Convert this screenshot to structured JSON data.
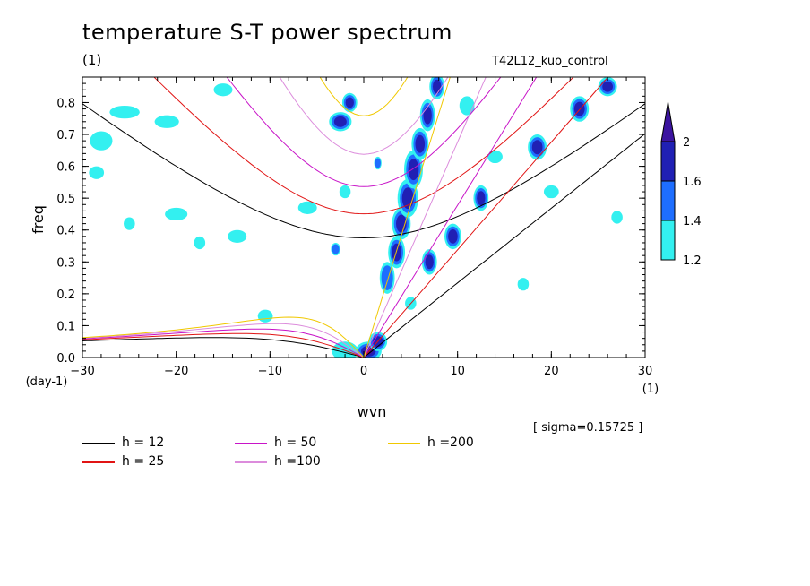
{
  "title": "temperature S-T power spectrum",
  "subtitle_left": "(1)",
  "subtitle_right": "T42L12_kuo_control",
  "sigma_label": "[ sigma=0.15725 ]",
  "chart_data": {
    "type": "heatmap",
    "xlabel": "wvn",
    "ylabel": "freq",
    "x_unit": "(1)",
    "y_unit": "(day-1)",
    "xlim": [
      -30,
      30
    ],
    "ylim": [
      0,
      0.88
    ],
    "x_ticks": [
      -30,
      -20,
      -10,
      0,
      10,
      20,
      30
    ],
    "x_tick_labels": [
      "−30",
      "−20",
      "−10",
      "0",
      "10",
      "20",
      "30"
    ],
    "y_ticks": [
      0,
      0.1,
      0.2,
      0.3,
      0.4,
      0.5,
      0.6,
      0.7,
      0.8
    ],
    "y_tick_labels": [
      "0.0",
      "0.1",
      "0.2",
      "0.3",
      "0.4",
      "0.5",
      "0.6",
      "0.7",
      "0.8"
    ],
    "colorbar": {
      "levels": [
        1.2,
        1.4,
        1.6,
        2
      ],
      "labels": [
        "1.2",
        "1.4",
        "1.6",
        "2"
      ],
      "colors": [
        "#33f0f0",
        "#1e6eff",
        "#2020b4",
        "#3c14a0"
      ]
    },
    "dispersion_curves": [
      {
        "h": 12,
        "label": "h = 12",
        "color": "#000000"
      },
      {
        "h": 25,
        "label": "h = 25",
        "color": "#e11414"
      },
      {
        "h": 50,
        "label": "h = 50",
        "color": "#c814c8"
      },
      {
        "h": 100,
        "label": "h =100",
        "color": "#dc8cdc"
      },
      {
        "h": 200,
        "label": "h =200",
        "color": "#f0c800"
      }
    ],
    "shaded_blobs": [
      {
        "x": 0.5,
        "y": 0.02,
        "rx": 1.4,
        "ry": 0.03,
        "level": 4
      },
      {
        "x": 1.5,
        "y": 0.05,
        "rx": 1.0,
        "ry": 0.03,
        "level": 3
      },
      {
        "x": 2.5,
        "y": 0.25,
        "rx": 0.8,
        "ry": 0.05,
        "level": 2
      },
      {
        "x": 3.5,
        "y": 0.33,
        "rx": 0.9,
        "ry": 0.05,
        "level": 3
      },
      {
        "x": 4.0,
        "y": 0.42,
        "rx": 1.0,
        "ry": 0.05,
        "level": 3
      },
      {
        "x": 4.7,
        "y": 0.5,
        "rx": 1.1,
        "ry": 0.06,
        "level": 3
      },
      {
        "x": 5.3,
        "y": 0.59,
        "rx": 1.0,
        "ry": 0.06,
        "level": 3
      },
      {
        "x": 6.0,
        "y": 0.67,
        "rx": 0.9,
        "ry": 0.05,
        "level": 3
      },
      {
        "x": 6.8,
        "y": 0.76,
        "rx": 0.8,
        "ry": 0.05,
        "level": 3
      },
      {
        "x": 7.8,
        "y": 0.85,
        "rx": 0.8,
        "ry": 0.04,
        "level": 3
      },
      {
        "x": 7.0,
        "y": 0.3,
        "rx": 0.8,
        "ry": 0.04,
        "level": 3
      },
      {
        "x": 9.5,
        "y": 0.38,
        "rx": 0.9,
        "ry": 0.04,
        "level": 3
      },
      {
        "x": 12.5,
        "y": 0.5,
        "rx": 0.8,
        "ry": 0.04,
        "level": 3
      },
      {
        "x": 18.5,
        "y": 0.66,
        "rx": 1.0,
        "ry": 0.04,
        "level": 3
      },
      {
        "x": 23.0,
        "y": 0.78,
        "rx": 1.0,
        "ry": 0.04,
        "level": 3
      },
      {
        "x": 26.0,
        "y": 0.85,
        "rx": 1.0,
        "ry": 0.03,
        "level": 3
      },
      {
        "x": -2.5,
        "y": 0.74,
        "rx": 1.2,
        "ry": 0.03,
        "level": 3
      },
      {
        "x": -1.5,
        "y": 0.8,
        "rx": 0.8,
        "ry": 0.03,
        "level": 3
      },
      {
        "x": 1.5,
        "y": 0.61,
        "rx": 0.4,
        "ry": 0.02,
        "level": 2
      },
      {
        "x": -3.0,
        "y": 0.34,
        "rx": 0.5,
        "ry": 0.02,
        "level": 2
      },
      {
        "x": -10.5,
        "y": 0.13,
        "rx": 0.8,
        "ry": 0.02,
        "level": 1
      },
      {
        "x": -2.0,
        "y": 0.02,
        "rx": 1.4,
        "ry": 0.03,
        "level": 1
      },
      {
        "x": -25.5,
        "y": 0.77,
        "rx": 1.6,
        "ry": 0.02,
        "level": 1
      },
      {
        "x": -21.0,
        "y": 0.74,
        "rx": 1.3,
        "ry": 0.02,
        "level": 1
      },
      {
        "x": -28.0,
        "y": 0.68,
        "rx": 1.2,
        "ry": 0.03,
        "level": 1
      },
      {
        "x": -20.0,
        "y": 0.45,
        "rx": 1.2,
        "ry": 0.02,
        "level": 1
      },
      {
        "x": -15.0,
        "y": 0.84,
        "rx": 1.0,
        "ry": 0.02,
        "level": 1
      },
      {
        "x": -28.5,
        "y": 0.58,
        "rx": 0.8,
        "ry": 0.02,
        "level": 1
      },
      {
        "x": -13.5,
        "y": 0.38,
        "rx": 1.0,
        "ry": 0.02,
        "level": 1
      },
      {
        "x": -6.0,
        "y": 0.47,
        "rx": 1.0,
        "ry": 0.02,
        "level": 1
      },
      {
        "x": -17.5,
        "y": 0.36,
        "rx": 0.6,
        "ry": 0.02,
        "level": 1
      },
      {
        "x": -25.0,
        "y": 0.42,
        "rx": 0.6,
        "ry": 0.02,
        "level": 1
      },
      {
        "x": 11.0,
        "y": 0.79,
        "rx": 0.8,
        "ry": 0.03,
        "level": 1
      },
      {
        "x": 14.0,
        "y": 0.63,
        "rx": 0.8,
        "ry": 0.02,
        "level": 1
      },
      {
        "x": 20.0,
        "y": 0.52,
        "rx": 0.8,
        "ry": 0.02,
        "level": 1
      },
      {
        "x": 27.0,
        "y": 0.44,
        "rx": 0.6,
        "ry": 0.02,
        "level": 1
      },
      {
        "x": 17.0,
        "y": 0.23,
        "rx": 0.6,
        "ry": 0.02,
        "level": 1
      },
      {
        "x": -2.0,
        "y": 0.52,
        "rx": 0.6,
        "ry": 0.02,
        "level": 1
      },
      {
        "x": 5.0,
        "y": 0.17,
        "rx": 0.6,
        "ry": 0.02,
        "level": 1
      }
    ]
  }
}
